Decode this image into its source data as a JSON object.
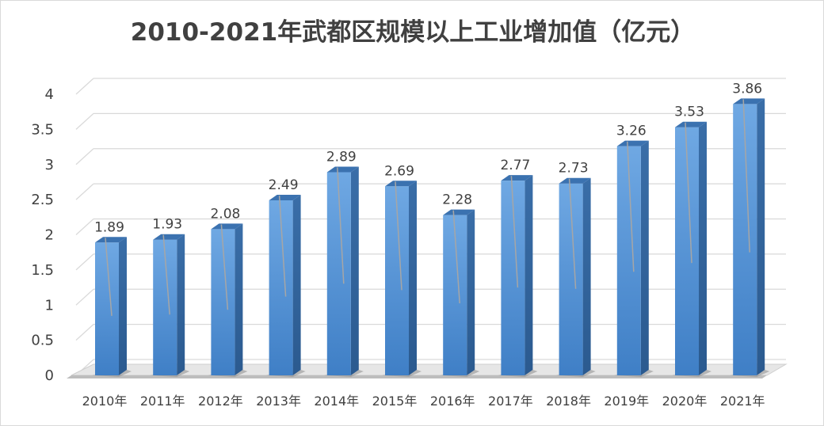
{
  "chart_data": {
    "type": "bar",
    "title": "2010-2021年武都区规模以上工业增加值（亿元）",
    "categories": [
      "2010年",
      "2011年",
      "2012年",
      "2013年",
      "2014年",
      "2015年",
      "2016年",
      "2017年",
      "2018年",
      "2019年",
      "2020年",
      "2021年"
    ],
    "values": [
      1.89,
      1.93,
      2.08,
      2.49,
      2.89,
      2.69,
      2.28,
      2.77,
      2.73,
      3.26,
      3.53,
      3.86
    ],
    "data_labels": [
      "1.89",
      "1.93",
      "2.08",
      "2.49",
      "2.89",
      "2.69",
      "2.28",
      "2.77",
      "2.73",
      "3.26",
      "3.53",
      "3.86"
    ],
    "y_ticks": [
      "0",
      "0.5",
      "1",
      "1.5",
      "2",
      "2.5",
      "3",
      "3.5",
      "4"
    ],
    "ylim": [
      0,
      4
    ],
    "grid": true,
    "style": "3d-column",
    "bar_color": "#4a8fd6"
  }
}
